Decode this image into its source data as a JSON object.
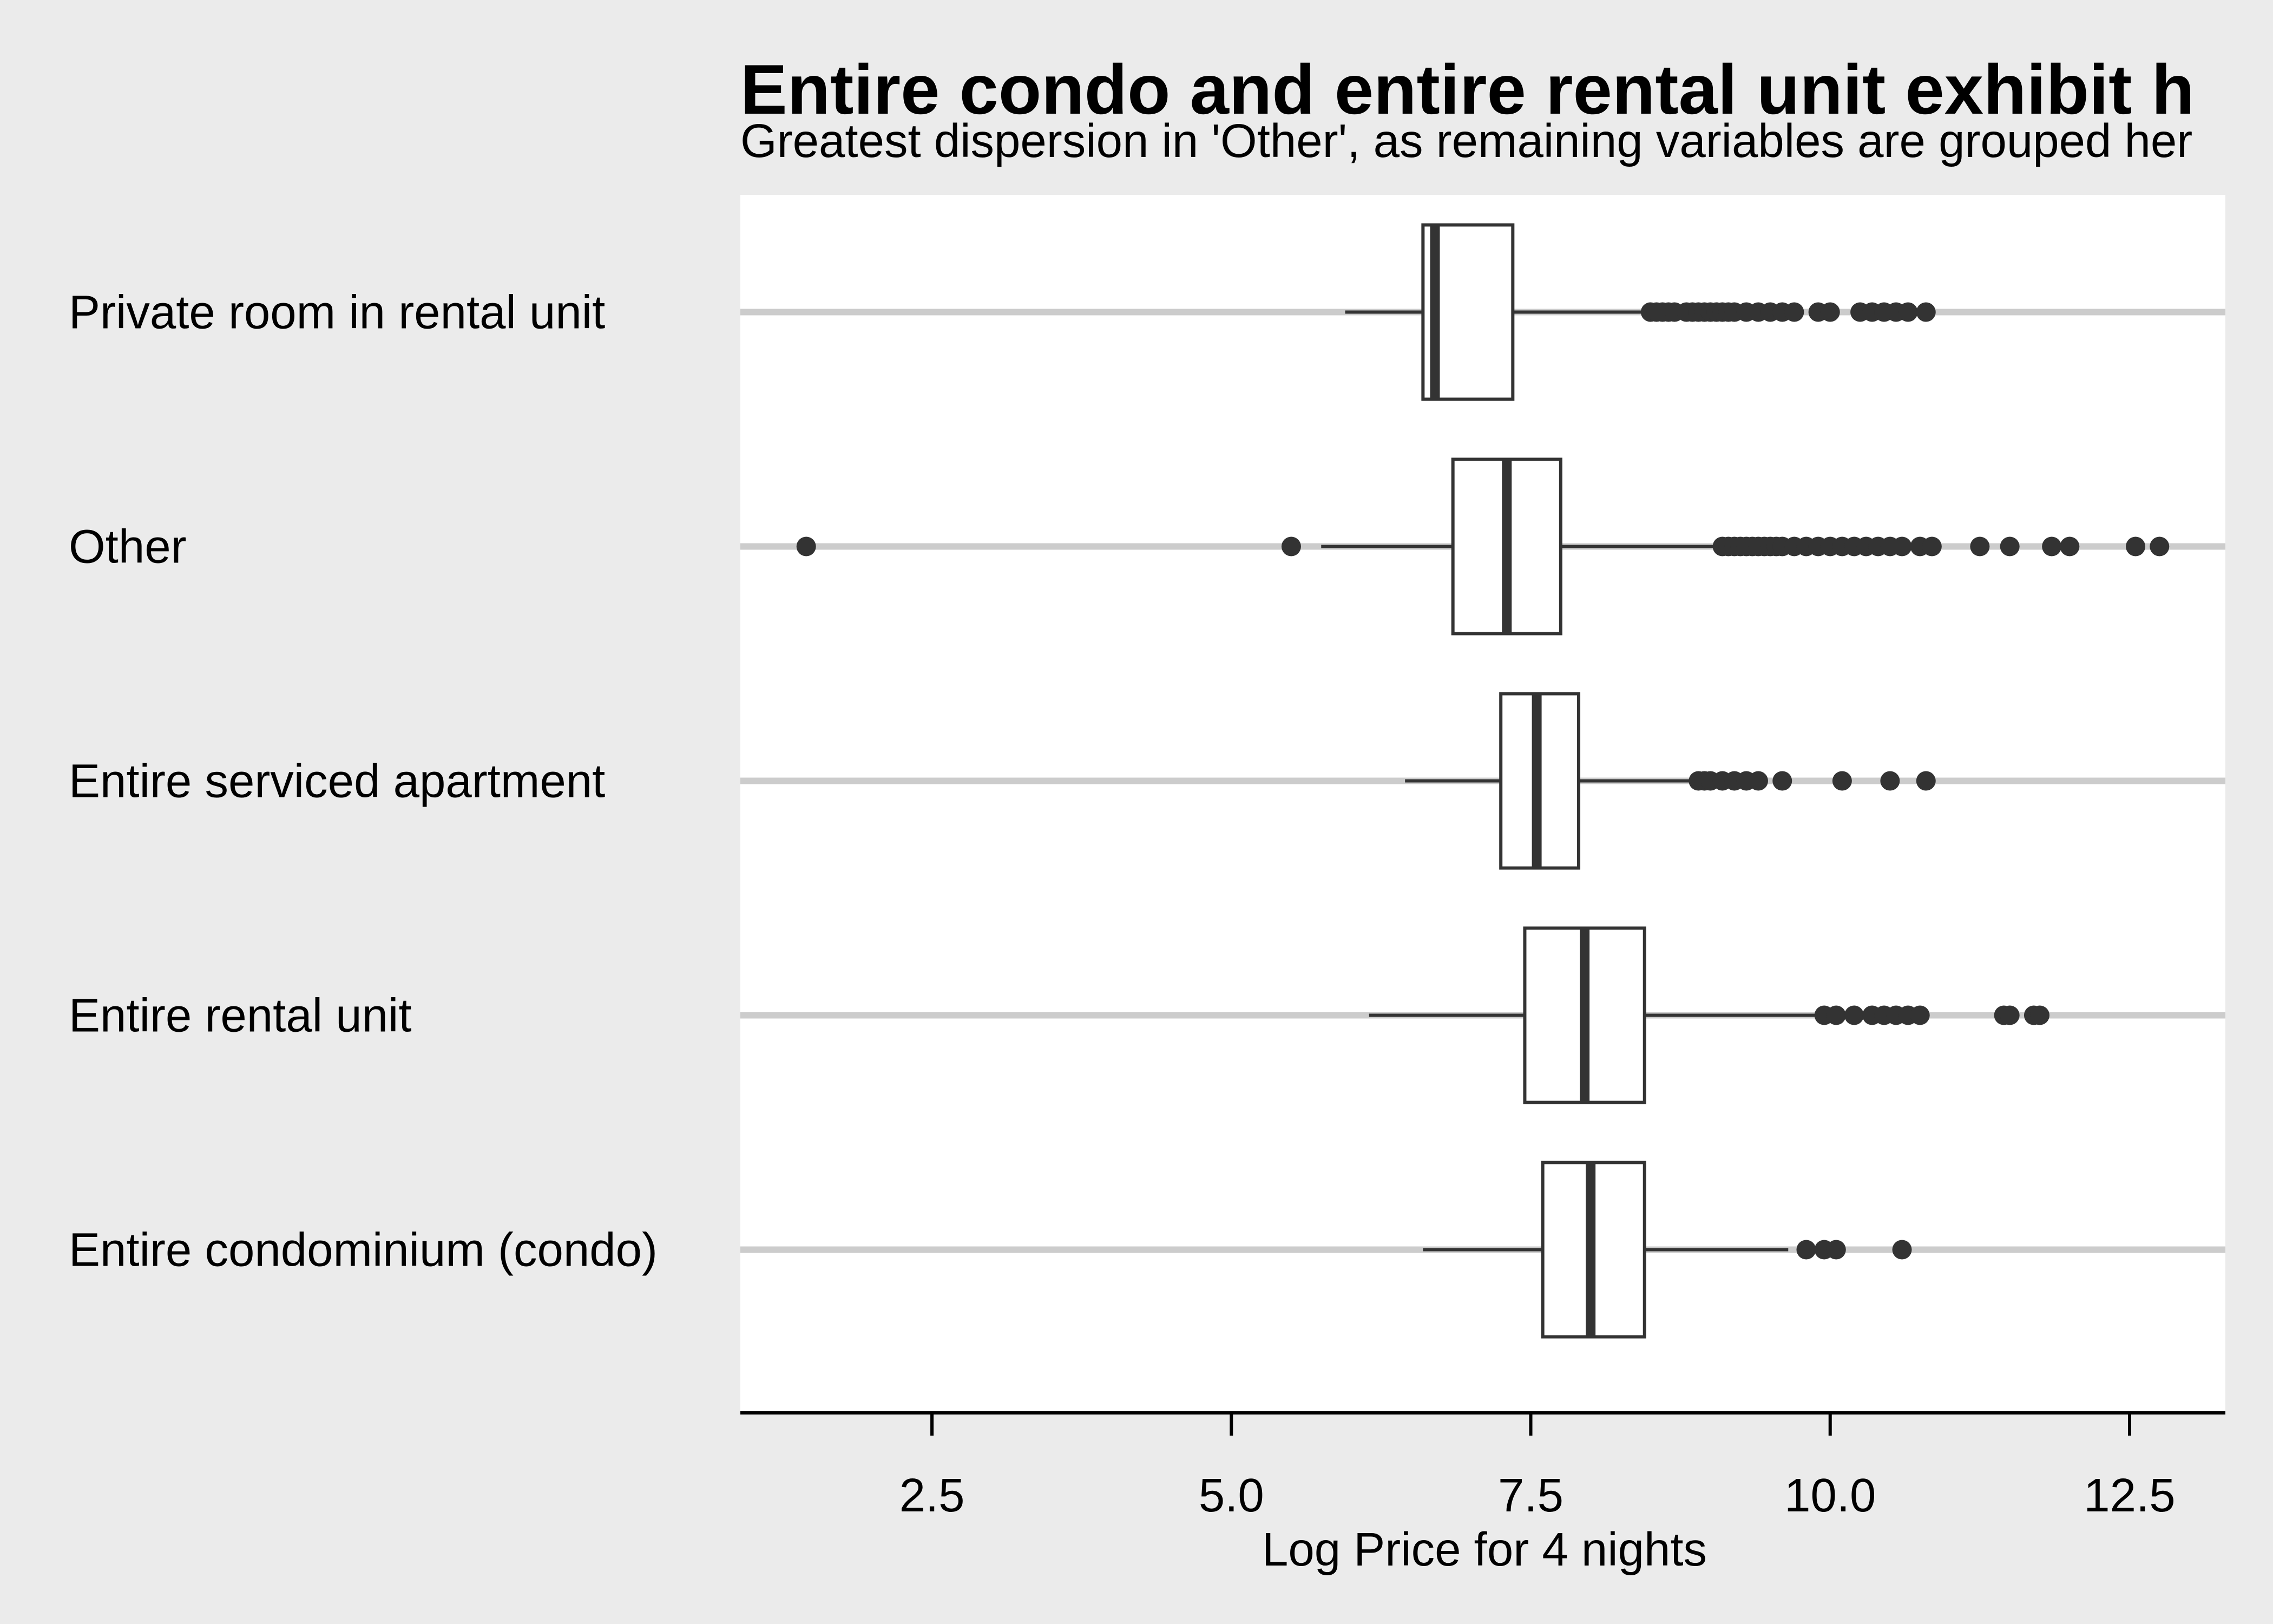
{
  "chart_data": {
    "type": "boxplot",
    "orientation": "horizontal",
    "title": "Entire condo and entire rental unit exhibit h",
    "subtitle": "Greatest dispersion in 'Other', as remaining variables are grouped her",
    "xlabel": "Log Price for 4 nights",
    "ylabel": "",
    "xlim": [
      0.9,
      13.3
    ],
    "xticks": [
      2.5,
      5.0,
      7.5,
      10.0,
      12.5
    ],
    "xtick_labels": [
      "2.5",
      "5.0",
      "7.5",
      "10.0",
      "12.5"
    ],
    "categories": [
      "Private room in rental unit",
      "Other",
      "Entire serviced apartment",
      "Entire rental unit",
      "Entire condominium (condo)"
    ],
    "boxes": [
      {
        "whisker_low": 5.95,
        "q1": 6.6,
        "median": 6.7,
        "q3": 7.35,
        "whisker_high": 8.45,
        "outliers": [
          8.5,
          8.55,
          8.6,
          8.65,
          8.7,
          8.8,
          8.85,
          8.9,
          8.95,
          9.0,
          9.05,
          9.1,
          9.15,
          9.2,
          9.3,
          9.4,
          9.5,
          9.6,
          9.7,
          9.9,
          10.0,
          10.25,
          10.35,
          10.45,
          10.55,
          10.65,
          10.8
        ]
      },
      {
        "whisker_low": 5.75,
        "q1": 6.85,
        "median": 7.3,
        "q3": 7.75,
        "whisker_high": 9.05,
        "outliers": [
          1.45,
          5.5,
          9.1,
          9.15,
          9.2,
          9.25,
          9.3,
          9.35,
          9.4,
          9.45,
          9.5,
          9.55,
          9.6,
          9.7,
          9.8,
          9.9,
          10.0,
          10.1,
          10.2,
          10.3,
          10.4,
          10.5,
          10.6,
          10.75,
          10.85,
          11.25,
          11.5,
          11.85,
          12.0,
          12.55,
          12.75
        ]
      },
      {
        "whisker_low": 6.45,
        "q1": 7.25,
        "median": 7.55,
        "q3": 7.9,
        "whisker_high": 8.85,
        "outliers": [
          8.9,
          8.95,
          9.0,
          9.1,
          9.2,
          9.3,
          9.4,
          9.6,
          10.1,
          10.5,
          10.8
        ]
      },
      {
        "whisker_low": 6.15,
        "q1": 7.45,
        "median": 7.95,
        "q3": 8.45,
        "whisker_high": 9.9,
        "outliers": [
          9.95,
          10.05,
          10.2,
          10.35,
          10.45,
          10.55,
          10.65,
          10.75,
          11.45,
          11.5,
          11.7,
          11.75
        ]
      },
      {
        "whisker_low": 6.6,
        "q1": 7.6,
        "median": 8.0,
        "q3": 8.45,
        "whisker_high": 9.65,
        "outliers": [
          9.8,
          9.95,
          10.05,
          10.6
        ]
      }
    ],
    "grid": "major-y-lines",
    "legend": "none",
    "colors": {
      "background": "#ebebeb",
      "panel": "#ffffff",
      "gridline": "#cccccc",
      "box_fill": "#ffffff",
      "box_stroke": "#333333",
      "median": "#333333",
      "outlier": "#333333",
      "axis": "#000000"
    }
  }
}
